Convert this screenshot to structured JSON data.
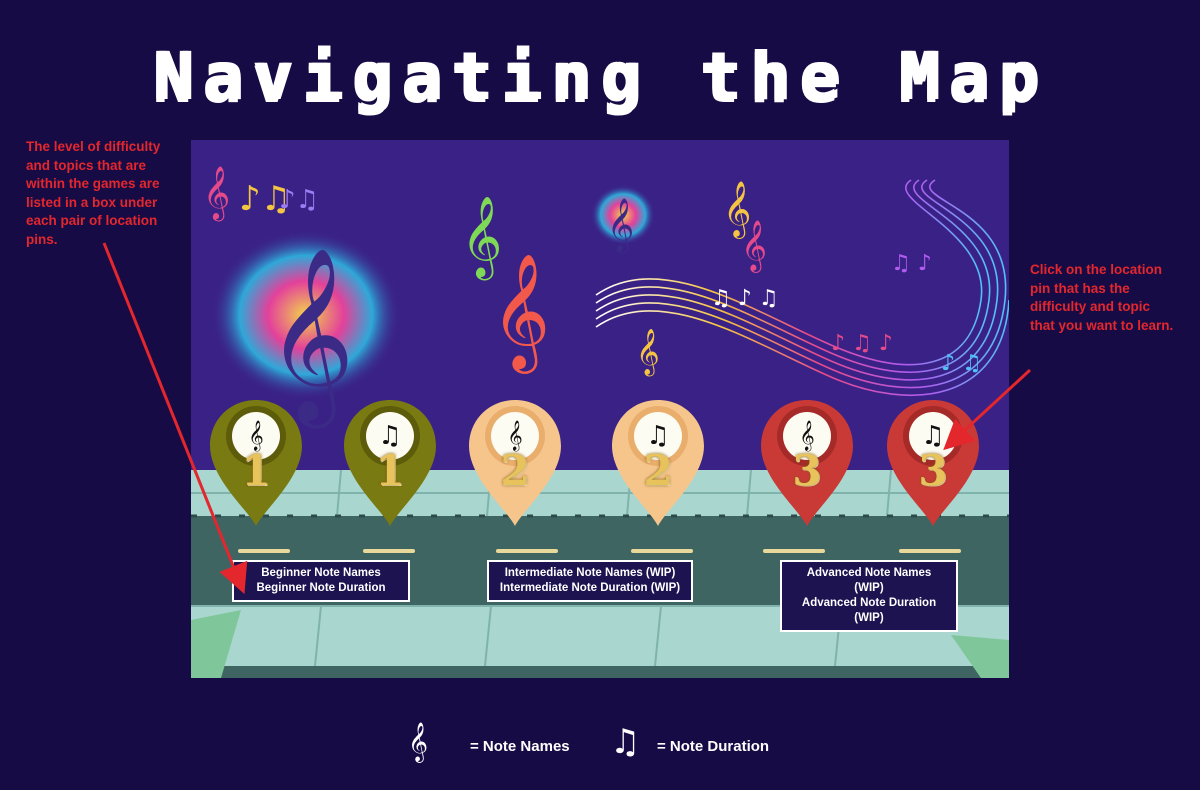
{
  "title": "Navigating the Map",
  "annotations": {
    "left": "The level of difficulty and topics that are within the games are listed in a box under each pair of location pins.",
    "right": "Click on the location pin that has the difficulty and topic that you want to learn."
  },
  "pins": [
    {
      "level": "1",
      "icon": "treble-clef-staff-icon",
      "glyph": "𝄞",
      "color": "#7a7a12"
    },
    {
      "level": "1",
      "icon": "music-notes-icon",
      "glyph": "♫",
      "color": "#7a7a12"
    },
    {
      "level": "2",
      "icon": "treble-clef-staff-icon",
      "glyph": "𝄞",
      "color": "#f6c58c"
    },
    {
      "level": "2",
      "icon": "music-notes-icon",
      "glyph": "♫",
      "color": "#f6c58c"
    },
    {
      "level": "3",
      "icon": "treble-clef-staff-icon",
      "glyph": "𝄞",
      "color": "#c93a37"
    },
    {
      "level": "3",
      "icon": "music-notes-icon",
      "glyph": "♫",
      "color": "#c93a37"
    }
  ],
  "boxes": [
    {
      "line1": "Beginner Note Names",
      "line2": "Beginner Note Duration"
    },
    {
      "line1": "Intermediate Note Names (WIP)",
      "line2": "Intermediate Note Duration (WIP)"
    },
    {
      "line1": "Advanced Note Names (WIP)",
      "line2": "Advanced Note Duration (WIP)"
    }
  ],
  "legend": {
    "note_names": "= Note Names",
    "note_duration": "= Note Duration",
    "note_names_icon": "treble-clef-staff-icon",
    "note_duration_icon": "music-notes-icon"
  },
  "colors": {
    "background": "#170b45",
    "annotation": "#e4262d",
    "beginner": "#7a7a12",
    "intermediate": "#f6c58c",
    "advanced": "#c93a37"
  }
}
